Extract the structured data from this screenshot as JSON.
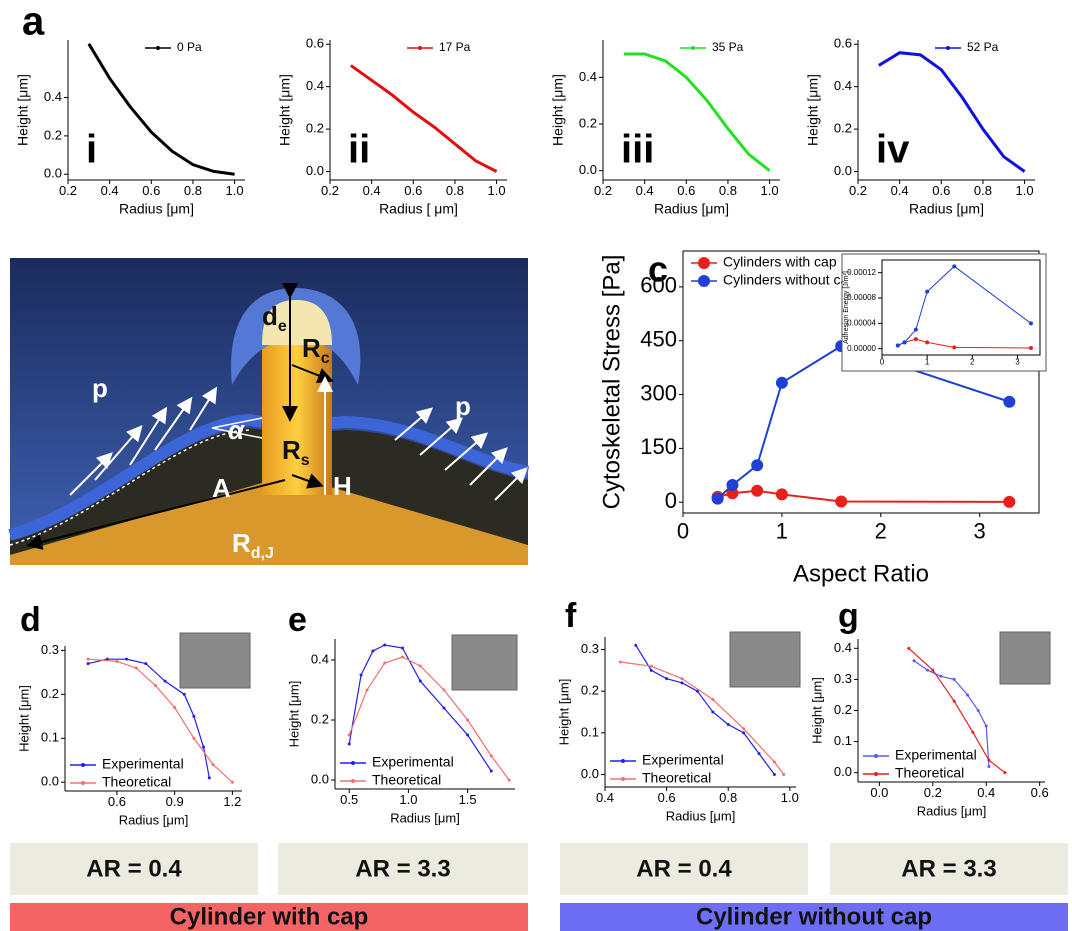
{
  "chart_data": [
    {
      "type": "line",
      "panel": "a",
      "annotation": "i",
      "x_label": "Radius [μm]",
      "y_label": "Height [μm]",
      "legend": "upper right",
      "xlim": [
        0.2,
        1.05
      ],
      "xticks": [
        0.2,
        0.4,
        0.6,
        0.8,
        {
          "value": 1,
          "label": "1.0"
        }
      ],
      "ylim": [
        -0.03,
        0.7
      ],
      "yticks": [
        {
          "value": 0,
          "label": "0.0"
        },
        0.2,
        0.4
      ],
      "series": [
        {
          "name": "0 Pa",
          "color": "#000000",
          "x": [
            0.3,
            0.4,
            0.5,
            0.6,
            0.7,
            0.8,
            0.9,
            1
          ],
          "values": [
            0.68,
            0.5,
            0.35,
            0.22,
            0.12,
            0.05,
            0.015,
            0
          ]
        }
      ]
    },
    {
      "type": "line",
      "annotation": "ii",
      "x_label": "Radius [ μm]",
      "y_label": "Height [μm]",
      "legend": "upper right",
      "xlim": [
        0.2,
        1.05
      ],
      "xticks": [
        0.2,
        0.4,
        0.6,
        0.8,
        {
          "value": 1,
          "label": "1.0"
        }
      ],
      "ylim": [
        -0.04,
        0.62
      ],
      "yticks": [
        {
          "value": 0,
          "label": "0.0"
        },
        0.2,
        0.4,
        0.6
      ],
      "series": [
        {
          "name": "17 Pa",
          "color": "#e01010",
          "x": [
            0.3,
            0.4,
            0.5,
            0.6,
            0.7,
            0.8,
            0.9,
            1
          ],
          "values": [
            0.5,
            0.43,
            0.36,
            0.28,
            0.21,
            0.13,
            0.05,
            0
          ]
        }
      ]
    },
    {
      "type": "line",
      "annotation": "iii",
      "x_label": "Radius [μm]",
      "y_label": "Height [μm]",
      "legend": "upper right",
      "xlim": [
        0.2,
        1.05
      ],
      "xticks": [
        0.2,
        0.4,
        0.6,
        0.8,
        {
          "value": 1,
          "label": "1.0"
        }
      ],
      "ylim": [
        -0.04,
        0.56
      ],
      "yticks": [
        {
          "value": 0,
          "label": "0.0"
        },
        0.2,
        0.4
      ],
      "series": [
        {
          "name": "35 Pa",
          "color": "#22e022",
          "x": [
            0.3,
            0.4,
            0.5,
            0.6,
            0.7,
            0.8,
            0.9,
            1
          ],
          "values": [
            0.5,
            0.5,
            0.47,
            0.4,
            0.3,
            0.18,
            0.07,
            0
          ]
        }
      ]
    },
    {
      "type": "line",
      "annotation": "iv",
      "x_label": "Radius [μm]",
      "y_label": "Height [μm]",
      "legend": "upper right",
      "xlim": [
        0.2,
        1.05
      ],
      "xticks": [
        0.2,
        0.4,
        0.6,
        0.8,
        {
          "value": 1,
          "label": "1.0"
        }
      ],
      "ylim": [
        -0.04,
        0.62
      ],
      "yticks": [
        {
          "value": 0,
          "label": "0.0"
        },
        0.2,
        0.4,
        0.6
      ],
      "series": [
        {
          "name": "52 Pa",
          "color": "#1010e0",
          "x": [
            0.3,
            0.4,
            0.5,
            0.6,
            0.7,
            0.8,
            0.9,
            1
          ],
          "values": [
            0.5,
            0.56,
            0.55,
            0.48,
            0.35,
            0.2,
            0.07,
            0
          ]
        }
      ]
    },
    {
      "type": "line",
      "panel": "c",
      "x_label": "Aspect Ratio",
      "y_label": "Cytoskeletal Stress [Pa]",
      "legend": "upper left",
      "xlim": [
        0,
        3.6
      ],
      "xticks": [
        0,
        1,
        2,
        3
      ],
      "ylim": [
        -30,
        700
      ],
      "yticks": [
        0,
        150,
        300,
        450,
        600
      ],
      "series": [
        {
          "name": "Cylinders with cap",
          "color": "#e8201c",
          "x": [
            0.35,
            0.5,
            0.75,
            1,
            1.6,
            3.3
          ],
          "values": [
            15,
            25,
            32,
            22,
            2,
            1
          ]
        },
        {
          "name": "Cylinders without cap",
          "color": "#1f3fd6",
          "x": [
            0.35,
            0.5,
            0.75,
            1,
            1.6,
            3.3
          ],
          "values": [
            10,
            48,
            103,
            333,
            435,
            280
          ]
        }
      ]
    },
    {
      "type": "line",
      "y_label": "Adhesion Energy [J/m²]",
      "xlim": [
        0,
        3.5
      ],
      "xticks": [
        0,
        1,
        2,
        3
      ],
      "ylim": [
        -1e-05,
        0.00014
      ],
      "yticks": [
        {
          "value": 0,
          "label": "0.00000"
        },
        {
          "value": 4e-05,
          "label": "0.00004"
        },
        {
          "value": 8e-05,
          "label": "0.00008"
        },
        {
          "value": 0.00012,
          "label": "0.00012"
        }
      ],
      "series": [
        {
          "name": "Cylinders with cap",
          "color": "#e8201c",
          "x": [
            0.35,
            0.5,
            0.75,
            1,
            1.6,
            3.3
          ],
          "values": [
            5e-06,
            1e-05,
            1.5e-05,
            1e-05,
            2e-06,
            1e-06
          ]
        },
        {
          "name": "Cylinders without cap",
          "color": "#1f3fd6",
          "x": [
            0.35,
            0.5,
            0.75,
            1,
            1.6,
            3.3
          ],
          "values": [
            5e-06,
            1e-05,
            3e-05,
            9e-05,
            0.00013,
            4e-05
          ]
        }
      ]
    },
    {
      "type": "line",
      "panel": "d",
      "x_label": "Radius [μm]",
      "y_label": "Height [μm]",
      "legend": "lower left",
      "xlim": [
        0.33,
        1.25
      ],
      "xticks": [
        0.6,
        0.9,
        1.2
      ],
      "ylim": [
        -0.02,
        0.31
      ],
      "yticks": [
        {
          "value": 0,
          "label": "0.0"
        },
        0.1,
        0.2,
        0.3
      ],
      "series": [
        {
          "name": "Experimental",
          "color": "#2020ee",
          "x": [
            0.45,
            0.55,
            0.65,
            0.75,
            0.85,
            0.95,
            1,
            1.05,
            1.08
          ],
          "values": [
            0.27,
            0.28,
            0.28,
            0.27,
            0.23,
            0.2,
            0.15,
            0.08,
            0.01
          ]
        },
        {
          "name": "Theoretical",
          "color": "#f07070",
          "x": [
            0.45,
            0.6,
            0.7,
            0.8,
            0.9,
            1,
            1.1,
            1.2
          ],
          "values": [
            0.28,
            0.275,
            0.26,
            0.22,
            0.17,
            0.1,
            0.04,
            0
          ]
        }
      ]
    },
    {
      "type": "line",
      "panel": "e",
      "x_label": "Radius [μm]",
      "y_label": "Height [μm]",
      "legend": "lower left",
      "xlim": [
        0.38,
        1.9
      ],
      "xticks": [
        0.5,
        {
          "value": 1,
          "label": "1.0"
        },
        1.5
      ],
      "ylim": [
        -0.03,
        0.47
      ],
      "yticks": [
        {
          "value": 0,
          "label": "0.0"
        },
        0.2,
        0.4
      ],
      "series": [
        {
          "name": "Experimental",
          "color": "#2020ee",
          "x": [
            0.5,
            0.6,
            0.7,
            0.8,
            0.95,
            1.1,
            1.3,
            1.5,
            1.7
          ],
          "values": [
            0.12,
            0.35,
            0.43,
            0.45,
            0.44,
            0.33,
            0.24,
            0.15,
            0.03
          ]
        },
        {
          "name": "Theoretical",
          "color": "#f07070",
          "x": [
            0.5,
            0.65,
            0.8,
            0.95,
            1.1,
            1.3,
            1.5,
            1.7,
            1.85
          ],
          "values": [
            0.15,
            0.3,
            0.39,
            0.41,
            0.38,
            0.3,
            0.2,
            0.08,
            0
          ]
        }
      ]
    },
    {
      "type": "line",
      "panel": "f",
      "x_label": "Radius [μm]",
      "y_label": "Height [μm]",
      "legend": "lower left",
      "xlim": [
        0.4,
        1.02
      ],
      "xticks": [
        0.4,
        0.6,
        0.8,
        {
          "value": 1,
          "label": "1.0"
        }
      ],
      "ylim": [
        -0.03,
        0.33
      ],
      "yticks": [
        {
          "value": 0,
          "label": "0.0"
        },
        0.1,
        0.2,
        0.3
      ],
      "series": [
        {
          "name": "Experimental",
          "color": "#2020ee",
          "x": [
            0.5,
            0.55,
            0.6,
            0.65,
            0.7,
            0.75,
            0.8,
            0.85,
            0.9,
            0.95
          ],
          "values": [
            0.31,
            0.25,
            0.23,
            0.22,
            0.2,
            0.15,
            0.12,
            0.1,
            0.05,
            0
          ]
        },
        {
          "name": "Theoretical",
          "color": "#f07070",
          "x": [
            0.45,
            0.55,
            0.65,
            0.75,
            0.85,
            0.95,
            0.98
          ],
          "values": [
            0.27,
            0.26,
            0.23,
            0.18,
            0.11,
            0.03,
            0
          ]
        }
      ]
    },
    {
      "type": "line",
      "panel": "g",
      "x_label": "Radius [μm]",
      "y_label": "Height [μm]",
      "legend": "lower left",
      "xlim": [
        -0.08,
        0.62
      ],
      "xticks": [
        {
          "value": 0,
          "label": "0.0"
        },
        0.2,
        0.4,
        0.6
      ],
      "ylim": [
        -0.03,
        0.43
      ],
      "yticks": [
        {
          "value": 0,
          "label": "0.0"
        },
        0.1,
        0.2,
        0.3,
        0.4
      ],
      "series": [
        {
          "name": "Experimental",
          "color": "#5a5af0",
          "x": [
            0.13,
            0.18,
            0.23,
            0.28,
            0.33,
            0.37,
            0.4,
            0.41
          ],
          "values": [
            0.36,
            0.33,
            0.31,
            0.3,
            0.25,
            0.2,
            0.15,
            0.02
          ]
        },
        {
          "name": "Theoretical",
          "color": "#e02020",
          "x": [
            0.11,
            0.2,
            0.28,
            0.35,
            0.41,
            0.47
          ],
          "values": [
            0.4,
            0.33,
            0.23,
            0.13,
            0.04,
            0
          ]
        }
      ]
    }
  ],
  "diagram": {
    "labels": [
      {
        "text": "p"
      },
      {
        "text": "p"
      },
      {
        "text": "d",
        "sub": "e"
      },
      {
        "text": "R",
        "sub": "c"
      },
      {
        "text": "α"
      },
      {
        "text": "R",
        "sub": "s"
      },
      {
        "text": "A"
      },
      {
        "text": "H"
      },
      {
        "text": "R",
        "sub": "d,J"
      }
    ]
  },
  "captions": {
    "ar": [
      "AR = 0.4",
      "AR = 3.3",
      "AR = 0.4",
      "AR = 3.3"
    ],
    "groups": [
      "Cylinder with cap",
      "Cylinder without cap"
    ]
  }
}
